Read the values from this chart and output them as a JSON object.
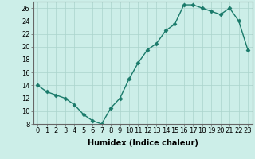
{
  "x": [
    0,
    1,
    2,
    3,
    4,
    5,
    6,
    7,
    8,
    9,
    10,
    11,
    12,
    13,
    14,
    15,
    16,
    17,
    18,
    19,
    20,
    21,
    22,
    23
  ],
  "y": [
    14,
    13,
    12.5,
    12,
    11,
    9.5,
    8.5,
    8,
    10.5,
    12,
    15,
    17.5,
    19.5,
    20.5,
    22.5,
    23.5,
    26.5,
    26.5,
    26,
    25.5,
    25,
    26,
    24,
    19.5
  ],
  "line_color": "#1a7a6a",
  "marker": "D",
  "marker_size": 2.5,
  "marker_color": "#1a7a6a",
  "xlabel": "Humidex (Indice chaleur)",
  "xlabel_fontsize": 7,
  "ylim": [
    8,
    27
  ],
  "xlim": [
    -0.5,
    23.5
  ],
  "yticks": [
    8,
    10,
    12,
    14,
    16,
    18,
    20,
    22,
    24,
    26
  ],
  "xticks": [
    0,
    1,
    2,
    3,
    4,
    5,
    6,
    7,
    8,
    9,
    10,
    11,
    12,
    13,
    14,
    15,
    16,
    17,
    18,
    19,
    20,
    21,
    22,
    23
  ],
  "xtick_labels": [
    "0",
    "1",
    "2",
    "3",
    "4",
    "5",
    "6",
    "7",
    "8",
    "9",
    "10",
    "11",
    "12",
    "13",
    "14",
    "15",
    "16",
    "17",
    "18",
    "19",
    "20",
    "21",
    "22",
    "23"
  ],
  "background_color": "#cceee8",
  "grid_color": "#aad4cc",
  "tick_fontsize": 6,
  "line_width": 1.0
}
